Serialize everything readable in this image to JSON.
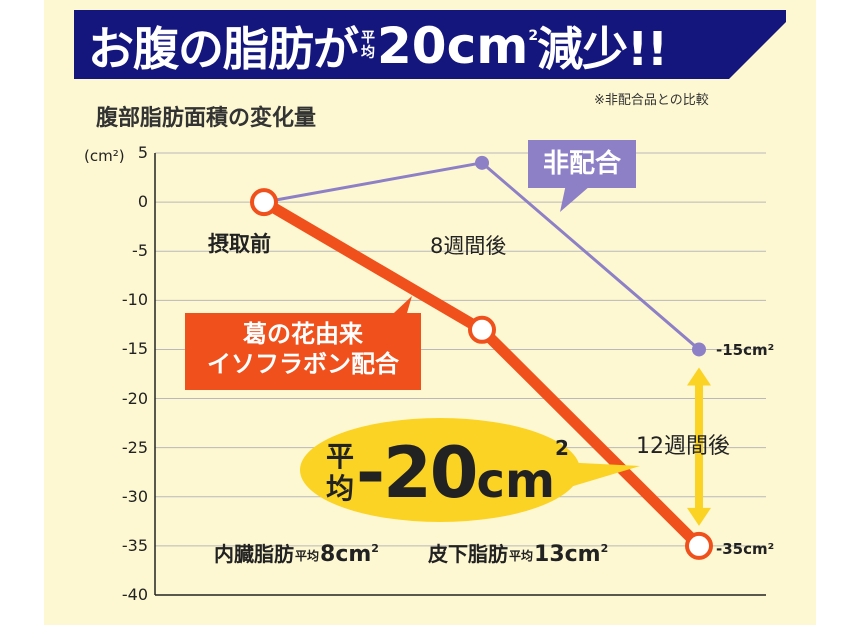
{
  "banner": {
    "part1": "お腹の脂肪が",
    "small_top": "平",
    "small_bottom": "均",
    "value": "20cm",
    "sup": "2",
    "part2": "減少!!"
  },
  "note": "※非配合品との比較",
  "chart_data": {
    "type": "line",
    "title": "腹部脂肪面積の変化量",
    "unit_label": "(cm²)",
    "ylim": [
      -40,
      5
    ],
    "y_ticks": [
      "5",
      "0",
      "-5",
      "-10",
      "-15",
      "-20",
      "-25",
      "-30",
      "-35",
      "-40"
    ],
    "y_tick_values": [
      5,
      0,
      -5,
      -10,
      -15,
      -20,
      -25,
      -30,
      -35,
      -40
    ],
    "grid": true,
    "categories": [
      "摂取前",
      "8週間後",
      "12週間後"
    ],
    "series": [
      {
        "name": "葛の花由来イソフラボン配合",
        "values": [
          0,
          -13,
          -35
        ],
        "color": "#f0501c"
      },
      {
        "name": "非配合",
        "values": [
          0,
          4,
          -15
        ],
        "color": "#8e80c6"
      }
    ],
    "end_labels": {
      "purple": "-15cm²",
      "orange": "-35cm²"
    }
  },
  "labels": {
    "orange_line1": "葛の花由来",
    "orange_line2": "イソフラボン配合",
    "purple": "非配合",
    "diff_small_top": "平",
    "diff_small_bottom": "均",
    "diff_value": "-20",
    "diff_unit": "cm",
    "diff_sup": "2"
  },
  "stats": {
    "visceral_label": "内臓脂肪",
    "visceral_avg": "平均",
    "visceral_value": "8cm",
    "visceral_sup": "2",
    "subcut_label": "皮下脂肪",
    "subcut_avg": "平均",
    "subcut_value": "13cm",
    "subcut_sup": "2"
  },
  "colors": {
    "banner": "#14167e",
    "orange": "#f0501c",
    "purple": "#8e80c6",
    "yellow": "#fbd324",
    "background": "#fdf8d2"
  }
}
